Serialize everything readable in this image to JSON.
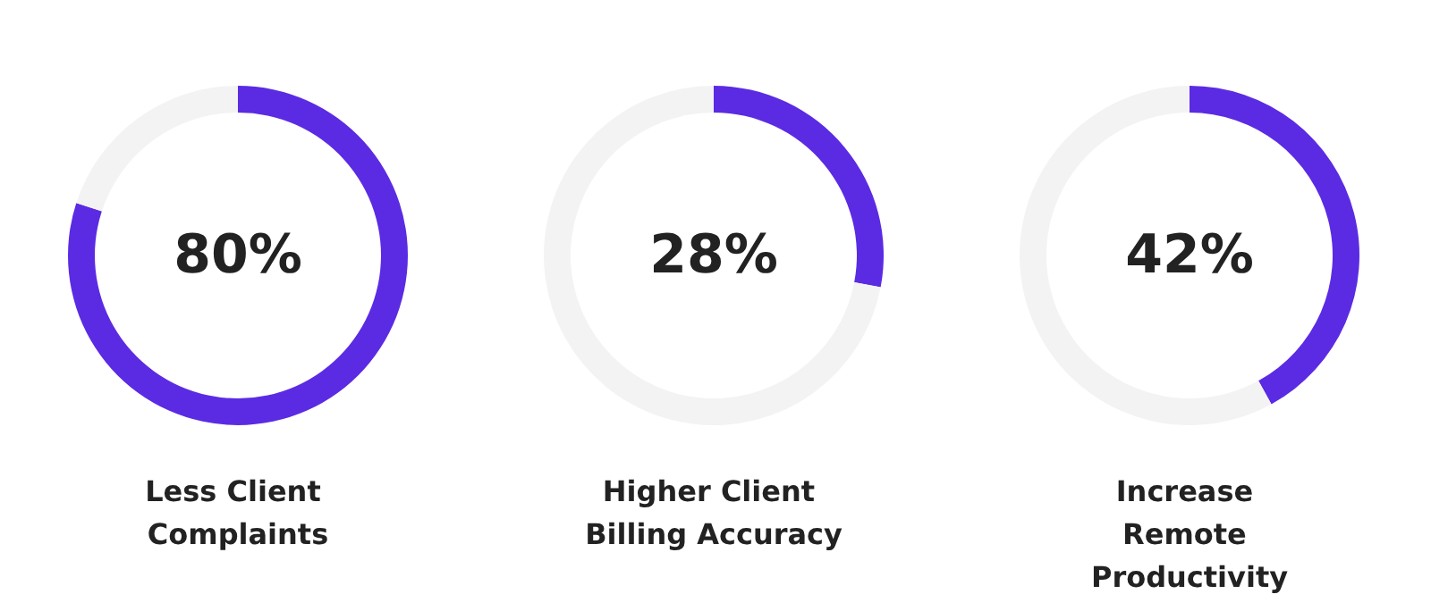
{
  "chart_data": [
    {
      "type": "donut",
      "title": "Less Client Complaints",
      "categories": [
        null,
        null
      ],
      "values": [
        80,
        20
      ],
      "colors": [
        "#5b2be3",
        "#f3f3f3"
      ],
      "value_labels": [
        "80%",
        null
      ]
    },
    {
      "type": "donut",
      "title": "Higher Client Billing Accuracy",
      "categories": [
        null,
        null
      ],
      "values": [
        28,
        72
      ],
      "colors": [
        "#5b2be3",
        "#f3f3f3"
      ],
      "value_labels": [
        "28%",
        null
      ]
    },
    {
      "type": "donut",
      "title": "Increase Remote Productivity",
      "categories": [
        null,
        null
      ],
      "values": [
        42,
        58
      ],
      "colors": [
        "#5b2be3",
        "#f3f3f3"
      ],
      "value_labels": [
        "42%",
        null
      ]
    }
  ]
}
